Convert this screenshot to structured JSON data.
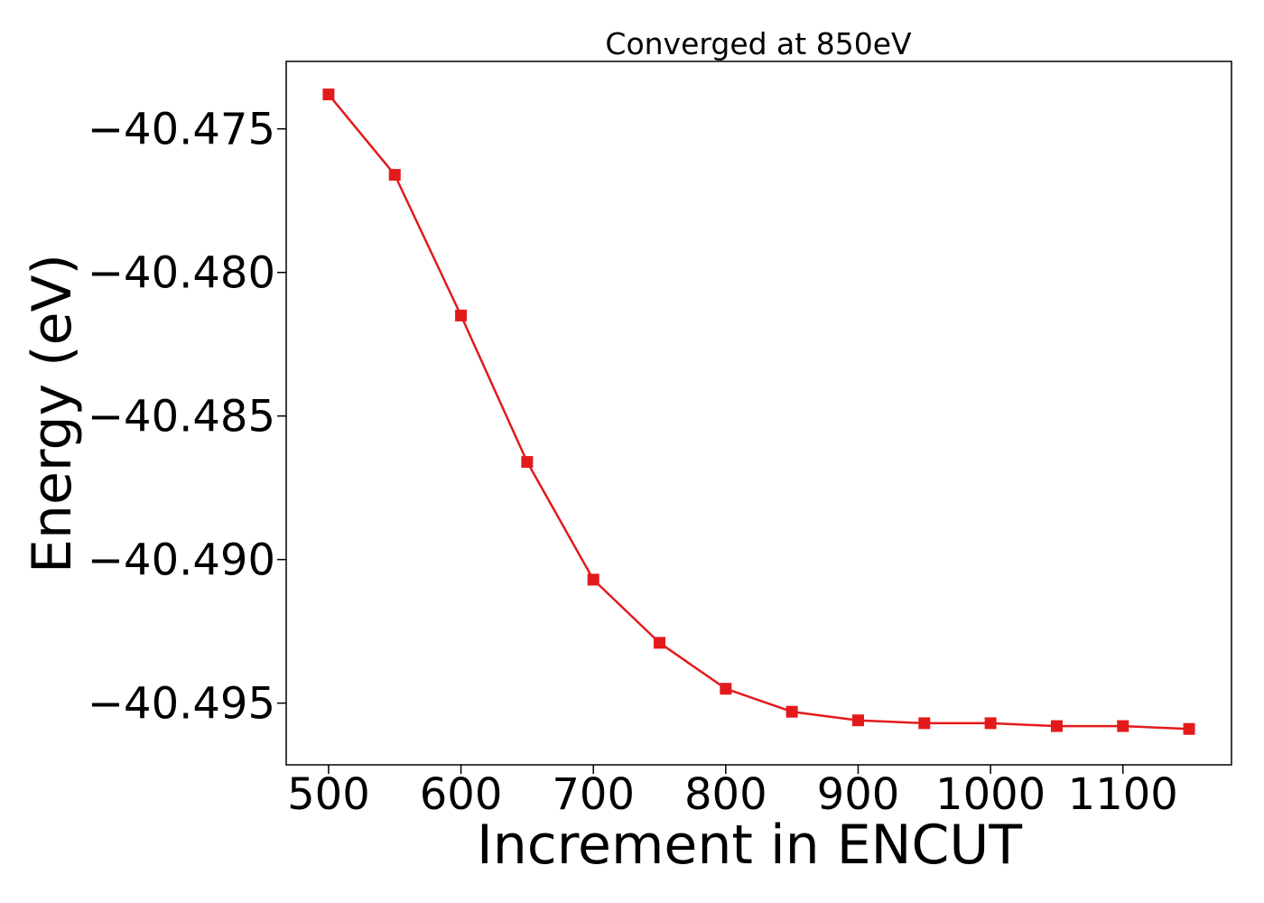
{
  "chart_data": {
    "type": "line",
    "title": "Converged at 850eV",
    "xlabel": "Increment in ENCUT",
    "ylabel": "Energy (eV)",
    "xlim": [
      468,
      1182
    ],
    "ylim": [
      -40.49715,
      -40.47265
    ],
    "xticks": [
      500,
      600,
      700,
      800,
      900,
      1000,
      1100
    ],
    "xtick_labels": [
      "500",
      "600",
      "700",
      "800",
      "900",
      "1000",
      "1100"
    ],
    "yticks": [
      -40.475,
      -40.48,
      -40.485,
      -40.49,
      -40.495
    ],
    "ytick_labels": [
      "−40.475",
      "−40.480",
      "−40.485",
      "−40.490",
      "−40.495"
    ],
    "grid": false,
    "legend": false,
    "series": [
      {
        "color": "#e31a1c",
        "marker": "square",
        "x": [
          500,
          550,
          600,
          650,
          700,
          750,
          800,
          850,
          900,
          950,
          1000,
          1050,
          1100,
          1150
        ],
        "y": [
          -40.4738,
          -40.4766,
          -40.4815,
          -40.4866,
          -40.4907,
          -40.4929,
          -40.4945,
          -40.4953,
          -40.4956,
          -40.4957,
          -40.4957,
          -40.4958,
          -40.4958,
          -40.4959
        ]
      }
    ]
  }
}
